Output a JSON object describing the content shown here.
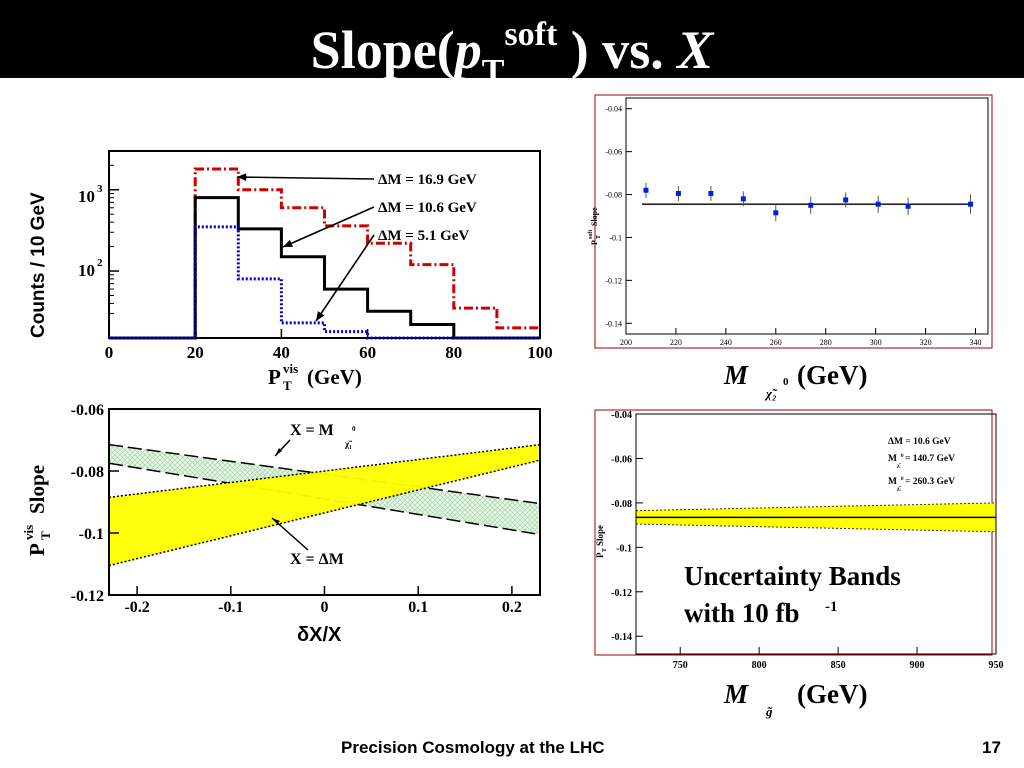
{
  "slide": {
    "title_prefix": "Slope(",
    "title_p": "p",
    "title_sub": "T",
    "title_sup": "soft",
    "title_mid": " ) vs. ",
    "title_x": "X",
    "footer_text": "Precision Cosmology at the LHC",
    "page_number": "17"
  },
  "colors": {
    "red": "#cc0000",
    "blue": "#0000cc",
    "black": "#000000",
    "yellow": "#ffff00",
    "band_green": "#d6f0d6",
    "point_blue": "#0022dd"
  },
  "chart_data": [
    {
      "id": "histogram",
      "type": "step-histogram",
      "y_scale": "log",
      "xlim": [
        0,
        100
      ],
      "ylim": [
        15,
        3000
      ],
      "xticks": [
        0,
        20,
        40,
        60,
        80,
        100
      ],
      "ytick_labels": [
        "10",
        "10"
      ],
      "ytick_sups": [
        "3",
        "2"
      ],
      "ylabel": "Counts / 10 GeV",
      "xlabel_main": "P",
      "xlabel_sub": "T",
      "xlabel_sup": "vis",
      "xlabel_unit": " (GeV)",
      "bin_edges": [
        0,
        10,
        20,
        30,
        40,
        50,
        60,
        70,
        80,
        90,
        100
      ],
      "series": [
        {
          "name": "ΔM = 16.9 GeV",
          "style": "dash-dot",
          "color": "red",
          "values": [
            15,
            15,
            1800,
            1000,
            600,
            360,
            220,
            120,
            35,
            20
          ]
        },
        {
          "name": "ΔM = 10.6 GeV",
          "style": "solid",
          "color": "black",
          "values": [
            15,
            15,
            800,
            330,
            150,
            60,
            32,
            22,
            15,
            15
          ]
        },
        {
          "name": "ΔM = 5.1 GeV",
          "style": "dotted",
          "color": "blue",
          "values": [
            15,
            15,
            350,
            80,
            23,
            18,
            15,
            15,
            15,
            15
          ]
        }
      ]
    },
    {
      "id": "slope-vs-dx",
      "type": "band",
      "xlim": [
        -0.23,
        0.23
      ],
      "ylim": [
        -0.12,
        -0.06
      ],
      "xticks": [
        "-0.2",
        "-0.1",
        "0",
        "0.1",
        "0.2"
      ],
      "yticks": [
        "-0.06",
        "-0.08",
        "-0.1",
        "-0.12"
      ],
      "ylabel_main": "P",
      "ylabel_sub": "T",
      "ylabel_sup": "vis",
      "ylabel_rest": " Slope",
      "xlabel": "δX/X",
      "bands": [
        {
          "label_main": "X = M",
          "label_sub": "χ̃₁",
          "label_sup": "0",
          "fill": "band_green",
          "style": "dashed",
          "x": [
            -0.23,
            0.23
          ],
          "upper": [
            -0.0715,
            -0.0905
          ],
          "lower": [
            -0.0775,
            -0.1005
          ]
        },
        {
          "label_main": "X = ΔM",
          "fill": "yellow",
          "style": "dotted",
          "x": [
            -0.23,
            0.23
          ],
          "upper": [
            -0.0885,
            -0.0715
          ],
          "lower": [
            -0.1105,
            -0.0765
          ]
        }
      ]
    },
    {
      "id": "slope-vs-neutralino-mass",
      "type": "scatter",
      "xlim": [
        200,
        345
      ],
      "ylim": [
        -0.145,
        -0.035
      ],
      "xticks": [
        "200",
        "220",
        "240",
        "260",
        "280",
        "300",
        "320",
        "340"
      ],
      "yticks": [
        "-0.04",
        "-0.06",
        "-0.08",
        "-0.1",
        "-0.12",
        "-0.14"
      ],
      "ylabel_main": "P",
      "ylabel_sub": "T",
      "ylabel_sup": "soft",
      "ylabel_rest": " Slope",
      "xlabel_main": "M",
      "xlabel_sub": "χ̃₂",
      "xlabel_sup": "0",
      "xlabel_unit": " (GeV)",
      "fit_y": -0.0845,
      "x": [
        208,
        221,
        234,
        247,
        260,
        274,
        288,
        301,
        313,
        338
      ],
      "y": [
        -0.078,
        -0.0795,
        -0.0795,
        -0.082,
        -0.0885,
        -0.085,
        -0.0825,
        -0.0845,
        -0.0855,
        -0.0845
      ],
      "yerr": [
        0.0035,
        0.0035,
        0.0035,
        0.0035,
        0.004,
        0.004,
        0.0035,
        0.004,
        0.004,
        0.0045
      ]
    },
    {
      "id": "slope-vs-gluino-mass",
      "type": "band",
      "xlim": [
        722,
        950
      ],
      "ylim": [
        -0.148,
        -0.04
      ],
      "xticks": [
        "750",
        "800",
        "850",
        "900",
        "950"
      ],
      "yticks": [
        "-0.04",
        "-0.06",
        "-0.08",
        "-0.1",
        "-0.12",
        "-0.14"
      ],
      "ylabel_main": "P",
      "ylabel_sub": "T",
      "ylabel_rest": " Slope",
      "xlabel_main": "M",
      "xlabel_sub": "g̃",
      "xlabel_unit": " (GeV)",
      "center": [
        -0.0865,
        -0.0865
      ],
      "band_x": [
        722,
        950
      ],
      "upper": [
        -0.0835,
        -0.08
      ],
      "lower": [
        -0.0895,
        -0.093
      ],
      "legend": [
        {
          "main": "ΔM = 10.6 GeV"
        },
        {
          "main": "M",
          "sub": "χ̃₁",
          "sup": "0",
          "rest": " = 140.7 GeV"
        },
        {
          "main": "M",
          "sub": "χ̃₂",
          "sup": "0",
          "rest": " = 260.3 GeV"
        }
      ],
      "note_line1": "Uncertainty Bands",
      "note_line2_main": "with 10 fb",
      "note_line2_sup": "-1"
    }
  ]
}
